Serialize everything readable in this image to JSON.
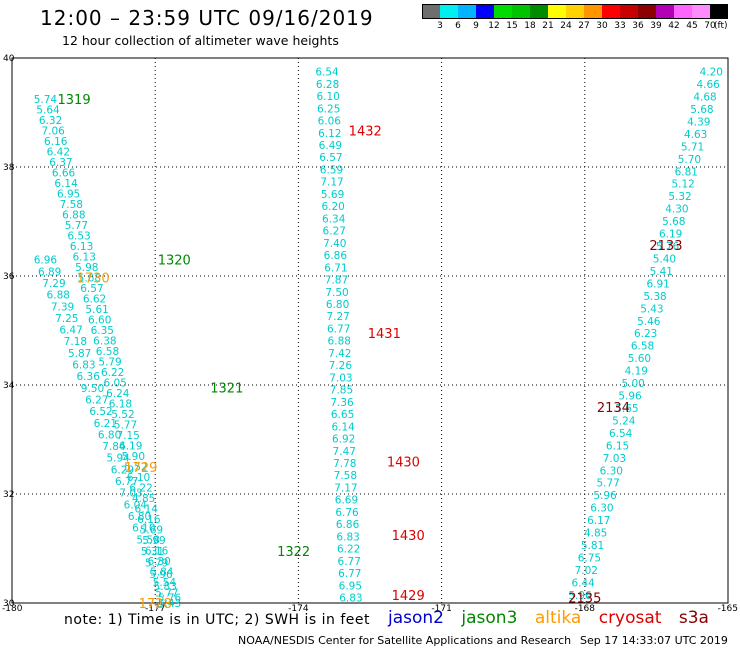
{
  "header": {
    "title": "12:00 – 23:59 UTC 09/16/2019",
    "subtitle": "12 hour collection of altimeter wave heights"
  },
  "colorbar": {
    "unit": "(ft)",
    "colors": [
      "#6e6e6e",
      "#00f0f0",
      "#00b4ff",
      "#0000ff",
      "#00dc00",
      "#00c400",
      "#008c00",
      "#ffff00",
      "#ffd200",
      "#ff9600",
      "#ff0000",
      "#c80000",
      "#8c0000",
      "#b400b4",
      "#ff64ff",
      "#ff8cff",
      "#000000"
    ],
    "labels": [
      "3",
      "6",
      "9",
      "12",
      "15",
      "18",
      "21",
      "24",
      "27",
      "30",
      "33",
      "36",
      "39",
      "42",
      "45",
      "70"
    ]
  },
  "footer": {
    "note": "note:  1) Time is in UTC; 2) SWH is in feet",
    "credit": "NOAA/NESDIS Center for Satellite Applications and Research",
    "timestamp": "Sep 17 14:33:07 UTC 2019"
  },
  "legend": [
    {
      "name": "jason2",
      "color": "#0000cc"
    },
    {
      "name": "jason3",
      "color": "#008800"
    },
    {
      "name": "altika",
      "color": "#ff9900"
    },
    {
      "name": "cryosat",
      "color": "#dd0000"
    },
    {
      "name": "s3a",
      "color": "#880000"
    }
  ],
  "chart_data": {
    "type": "scatter",
    "title": "12:00 – 23:59 UTC 09/16/2019",
    "xlabel": "",
    "ylabel": "",
    "xlim": [
      -180,
      -165
    ],
    "ylim": [
      30,
      40
    ],
    "xticks": [
      "-180",
      "-177",
      "-174",
      "-171",
      "-168",
      "-165"
    ],
    "yticks": [
      "30",
      "32",
      "34",
      "36",
      "38",
      "40"
    ],
    "grid": true,
    "tracks": [
      {
        "id": "a",
        "color": "#00cccc",
        "x0": -179.3,
        "x1": -176.7,
        "y0": 39.25,
        "y1": 30.0,
        "values": [
          "5.74",
          "5.64",
          "6.32",
          "7.06",
          "6.16",
          "6.42",
          "6.37",
          "6.66",
          "6.14",
          "6.95",
          "7.58",
          "6.88",
          "5.77",
          "6.53",
          "6.13",
          "6.13",
          "5.98",
          "5.68",
          "6.57",
          "6.62",
          "5.61",
          "6.60",
          "6.35",
          "6.38",
          "6.58",
          "5.79",
          "6.22",
          "6.05",
          "6.24",
          "6.18",
          "5.52",
          "5.77",
          "7.15",
          "6.19",
          "5.90",
          "5.52",
          "6.10",
          "6.22",
          "4.85",
          "6.14",
          "6.16",
          "5.69",
          "5.99",
          "6.16",
          "6.30",
          "5.84",
          "5.54",
          "5.77",
          "5.43"
        ]
      },
      {
        "id": "b",
        "color": "#00cccc",
        "x0": -179.3,
        "x1": -176.7,
        "y0": 36.3,
        "y1": 30.1,
        "values": [
          "6.96",
          "6.89",
          "7.29",
          "6.88",
          "7.39",
          "7.25",
          "6.47",
          "7.18",
          "5.87",
          "6.83",
          "6.36",
          "9.50",
          "6.27",
          "6.52",
          "6.21",
          "6.80",
          "7.84",
          "5.94",
          "6.29",
          "6.77",
          "7.03",
          "6.04",
          "6.80",
          "6.10",
          "5.58",
          "5.31",
          "5.79",
          "5.96",
          "5.83",
          "5.76"
        ]
      },
      {
        "id": "c",
        "color": "#00cccc",
        "x0": -173.4,
        "x1": -172.9,
        "y0": 39.75,
        "y1": 30.1,
        "values": [
          "6.54",
          "6.28",
          "6.10",
          "6.25",
          "6.06",
          "6.12",
          "6.49",
          "6.57",
          "6.59",
          "7.17",
          "5.69",
          "6.20",
          "6.34",
          "6.27",
          "7.40",
          "6.86",
          "6.71",
          "7.87",
          "7.50",
          "6.80",
          "7.27",
          "6.77",
          "6.88",
          "7.42",
          "7.26",
          "7.03",
          "7.85",
          "7.36",
          "6.65",
          "6.14",
          "6.92",
          "7.47",
          "7.78",
          "7.58",
          "7.17",
          "6.69",
          "6.76",
          "6.86",
          "6.83",
          "6.22",
          "6.77",
          "6.77",
          "6.95",
          "6.83"
        ]
      },
      {
        "id": "d",
        "color": "#00cccc",
        "x0": -165.35,
        "x1": -168.1,
        "y0": 39.75,
        "y1": 30.15,
        "values": [
          "4.20",
          "4.66",
          "4.68",
          "5.68",
          "4.39",
          "4.63",
          "5.71",
          "5.70",
          "6.81",
          "5.12",
          "5.32",
          "4.30",
          "5.68",
          "6.19",
          "5.76",
          "5.40",
          "5.41",
          "6.91",
          "5.38",
          "5.43",
          "5.46",
          "6.23",
          "6.58",
          "5.60",
          "4.19",
          "5.00",
          "5.96",
          "5.65",
          "5.24",
          "6.54",
          "6.15",
          "7.03",
          "6.30",
          "5.77",
          "5.96",
          "6.30",
          "6.17",
          "4.85",
          "5.81",
          "6.75",
          "7.02",
          "6.44",
          "5.96"
        ]
      }
    ],
    "time_labels": [
      {
        "text": "1319",
        "x": -178.7,
        "y": 39.25,
        "color": "#008800"
      },
      {
        "text": "1320",
        "x": -176.6,
        "y": 36.3,
        "color": "#008800"
      },
      {
        "text": "1730",
        "x": -178.3,
        "y": 35.97,
        "color": "#ff9900"
      },
      {
        "text": "1321",
        "x": -175.5,
        "y": 33.95,
        "color": "#008800"
      },
      {
        "text": "1729",
        "x": -177.3,
        "y": 32.5,
        "color": "#ff9900"
      },
      {
        "text": "1322",
        "x": -174.1,
        "y": 30.95,
        "color": "#008800"
      },
      {
        "text": "1728",
        "x": -177.0,
        "y": 30.0,
        "color": "#ff9900"
      },
      {
        "text": "1432",
        "x": -172.6,
        "y": 38.67,
        "color": "#dd0000"
      },
      {
        "text": "1431",
        "x": -172.2,
        "y": 34.95,
        "color": "#dd0000"
      },
      {
        "text": "1430",
        "x": -171.8,
        "y": 32.6,
        "color": "#dd0000"
      },
      {
        "text": "1430",
        "x": -171.7,
        "y": 31.25,
        "color": "#dd0000"
      },
      {
        "text": "1429",
        "x": -171.7,
        "y": 30.15,
        "color": "#dd0000"
      },
      {
        "text": "2133",
        "x": -166.3,
        "y": 36.57,
        "color": "#880000"
      },
      {
        "text": "2134",
        "x": -167.4,
        "y": 33.6,
        "color": "#880000"
      },
      {
        "text": "2135",
        "x": -168.0,
        "y": 30.1,
        "color": "#880000"
      }
    ]
  }
}
